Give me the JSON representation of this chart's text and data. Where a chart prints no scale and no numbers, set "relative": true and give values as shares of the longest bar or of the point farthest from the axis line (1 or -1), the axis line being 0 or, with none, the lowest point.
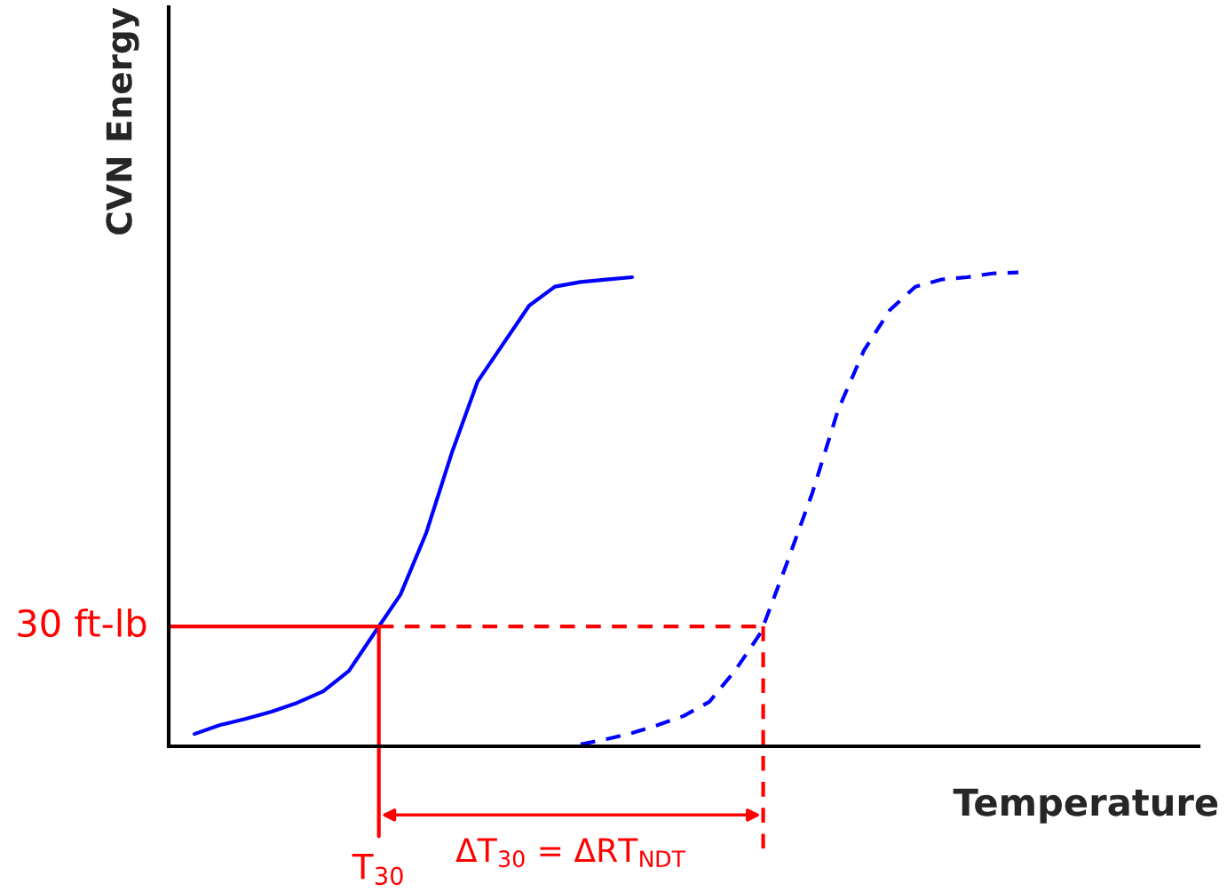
{
  "chart_data": {
    "type": "line",
    "relative": true,
    "xlabel": "Temperature",
    "ylabel": "CVN Energy",
    "categories": [
      null,
      null,
      null,
      null,
      null,
      null,
      null,
      null,
      null,
      null,
      null,
      null,
      null,
      null,
      null,
      null,
      null,
      null,
      null,
      null,
      null,
      null,
      null,
      null,
      null,
      null,
      null,
      null,
      null,
      null,
      null,
      null,
      null,
      null,
      null,
      null,
      null,
      null,
      null,
      null,
      null
    ],
    "series": [
      {
        "color": "#0000ff",
        "line_style": "solid",
        "values": [
          null,
          0.026,
          0.045,
          0.058,
          0.073,
          0.092,
          0.116,
          0.159,
          0.24,
          0.32,
          0.45,
          0.62,
          0.77,
          0.85,
          0.93,
          0.97,
          0.98,
          0.985,
          0.99,
          null,
          null,
          null,
          null,
          null,
          null,
          null,
          null,
          null,
          null,
          null,
          null,
          null,
          null,
          null,
          null,
          null,
          null,
          null,
          null,
          null,
          null
        ]
      },
      {
        "color": "#0000ff",
        "line_style": "dashed",
        "values": [
          null,
          null,
          null,
          null,
          null,
          null,
          null,
          null,
          null,
          null,
          null,
          null,
          null,
          null,
          null,
          null,
          0.004,
          0.015,
          0.028,
          0.045,
          0.064,
          0.094,
          0.16,
          0.24,
          0.385,
          0.535,
          0.71,
          0.835,
          0.92,
          0.97,
          0.985,
          0.99,
          0.998,
          1.0,
          null,
          null,
          null,
          null,
          null,
          null,
          null
        ]
      }
    ],
    "ref_lines": [
      {
        "axis": "y",
        "value": 0.253,
        "label": "30 ft-lb",
        "color": "#ff0000"
      }
    ],
    "annotations": [
      "T$_{30}$",
      "ΔT$_{30}$ = ΔRT$_{NDT}$"
    ]
  }
}
